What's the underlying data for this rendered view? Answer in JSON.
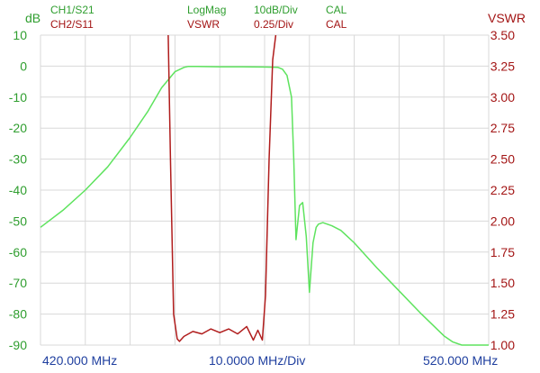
{
  "header": {
    "ch1_label": "CH1/S21",
    "ch2_label": "CH2/S11",
    "ch1_format": "LogMag",
    "ch2_format": "VSWR",
    "ch1_scale": "10dB/Div",
    "ch2_scale": "0.25/Div",
    "ch1_cal": "CAL",
    "ch2_cal": "CAL"
  },
  "footer": {
    "start_freq": "420.000 MHz",
    "span_div": "10.0000 MHz/Div",
    "stop_freq": "520.000 MHz"
  },
  "colors": {
    "s21": "#5ee35e",
    "s11": "#b01c1c",
    "left_axis_text": "#2f9e2f",
    "right_axis_text": "#a31515",
    "x_axis_text": "#1f3f9f",
    "grid": "#d8d8d8"
  },
  "chart_data": {
    "type": "line",
    "left_axis": {
      "unit": "dB",
      "ylim": [
        -90,
        10
      ],
      "ticks": [
        "10",
        "0",
        "-10",
        "-20",
        "-30",
        "-40",
        "-50",
        "-60",
        "-70",
        "-80",
        "-90"
      ]
    },
    "right_axis": {
      "unit": "VSWR",
      "ylim": [
        1.0,
        3.5
      ],
      "ticks": [
        "3.50",
        "3.25",
        "3.00",
        "2.75",
        "2.50",
        "2.25",
        "2.00",
        "1.75",
        "1.50",
        "1.25",
        "1.00"
      ]
    },
    "xlim": [
      420,
      520
    ],
    "x_unit": "MHz",
    "grid": true,
    "series": [
      {
        "name": "CH1/S21",
        "axis": "left",
        "x": [
          420,
          425,
          430,
          435,
          440,
          444,
          447,
          450,
          452,
          453,
          455,
          460,
          465,
          470,
          473,
          474,
          475,
          476,
          476.5,
          477,
          477.8,
          478.5,
          479.3,
          480,
          480.8,
          481.5,
          482,
          483,
          485,
          487,
          490,
          495,
          500,
          505,
          510,
          512,
          514,
          520
        ],
        "y": [
          -52,
          -46.5,
          -40,
          -32.5,
          -23,
          -14.5,
          -7,
          -1.8,
          -0.4,
          -0.1,
          -0.1,
          -0.2,
          -0.2,
          -0.3,
          -0.4,
          -1,
          -3,
          -10,
          -30,
          -56,
          -45,
          -44,
          -55,
          -73,
          -57,
          -52,
          -51,
          -50.5,
          -51.5,
          -53,
          -57,
          -65,
          -72.5,
          -80,
          -87,
          -89,
          -90,
          -90
        ]
      },
      {
        "name": "CH2/S11",
        "axis": "right",
        "x": [
          448.5,
          449,
          449.7,
          450.5,
          451,
          452,
          454,
          456,
          458,
          460,
          462,
          464,
          466,
          467.5,
          468.5,
          469.5,
          470.2,
          471,
          471.8,
          472.5
        ],
        "y": [
          3.5,
          2.5,
          1.25,
          1.05,
          1.03,
          1.07,
          1.11,
          1.09,
          1.13,
          1.1,
          1.13,
          1.09,
          1.15,
          1.04,
          1.12,
          1.04,
          1.4,
          2.5,
          3.3,
          3.5
        ]
      }
    ]
  }
}
